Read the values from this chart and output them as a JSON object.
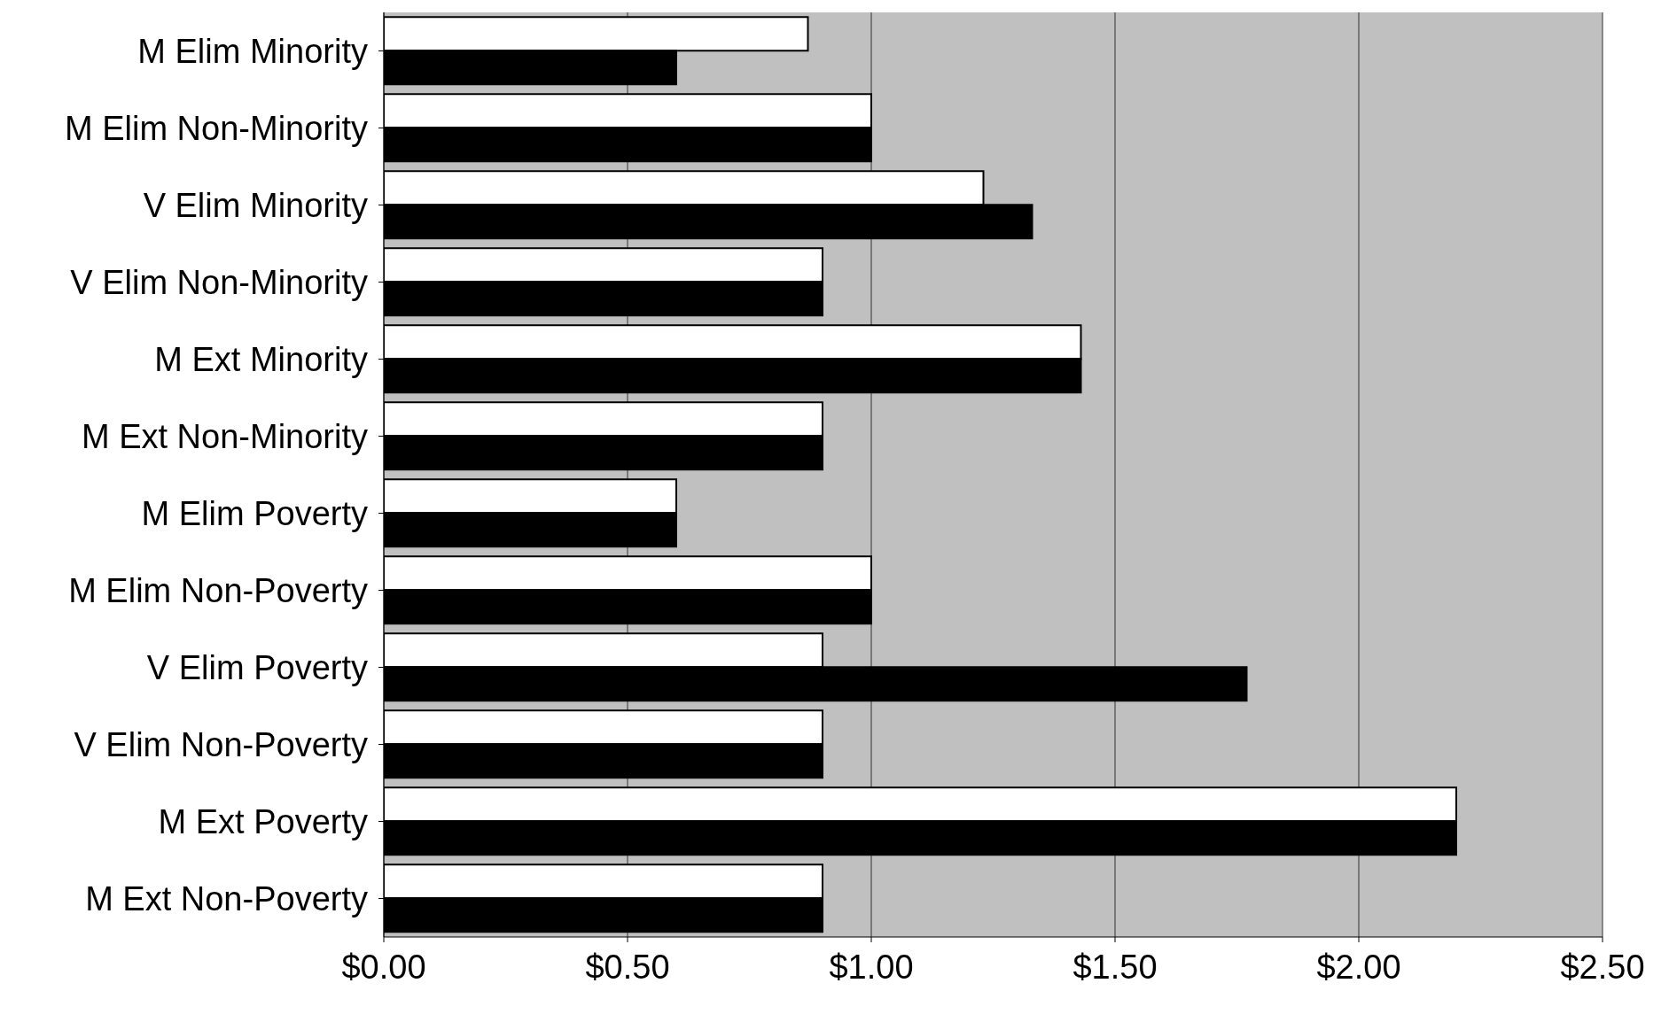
{
  "chart_data": {
    "type": "bar",
    "orientation": "horizontal",
    "categories": [
      "M Elim Minority",
      "M Elim Non-Minority",
      "V Elim Minority",
      "V Elim Non-Minority",
      "M Ext Minority",
      "M Ext Non-Minority",
      "M Elim Poverty",
      "M Elim Non-Poverty",
      "V Elim Poverty",
      "V Elim Non-Poverty",
      "M Ext Poverty",
      "M Ext Non-Poverty"
    ],
    "series": [
      {
        "color": "#ffffff",
        "values": [
          0.87,
          1.0,
          1.23,
          0.9,
          1.43,
          0.9,
          0.6,
          1.0,
          0.9,
          0.9,
          2.2,
          0.9
        ]
      },
      {
        "color": "#000000",
        "values": [
          0.6,
          1.0,
          1.33,
          0.9,
          1.43,
          0.9,
          0.6,
          1.0,
          1.77,
          0.9,
          2.2,
          0.9
        ]
      }
    ],
    "xlim": [
      0,
      2.5
    ],
    "xticks": [
      {
        "value": 0,
        "label": "$0.00"
      },
      {
        "value": 0.5,
        "label": "$0.50"
      },
      {
        "value": 1,
        "label": "$1.00"
      },
      {
        "value": 1.5,
        "label": "$1.50"
      },
      {
        "value": 2,
        "label": "$2.00"
      },
      {
        "value": 2.5,
        "label": "$2.50"
      }
    ],
    "grid": "x"
  }
}
